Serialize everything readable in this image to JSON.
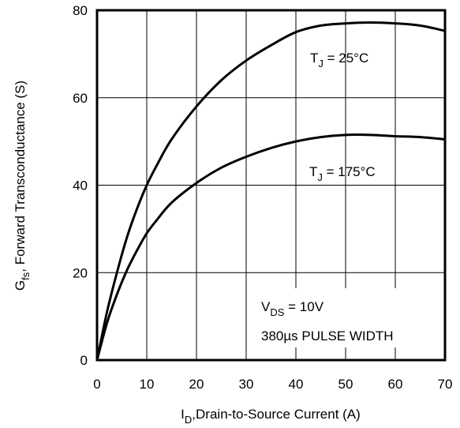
{
  "chart_data": {
    "type": "line",
    "x": [
      0,
      2,
      4,
      6,
      8,
      10,
      12,
      15,
      20,
      25,
      30,
      35,
      40,
      45,
      50,
      55,
      60,
      65,
      70
    ],
    "series": [
      {
        "name_main": "T",
        "name_sub": "J",
        "name_rest": " = 25°C",
        "values": [
          0,
          11,
          20,
          28,
          34.5,
          40,
          44.5,
          50.5,
          58,
          64,
          68.5,
          72,
          75,
          76.5,
          77,
          77.2,
          77,
          76.5,
          75.3
        ]
      },
      {
        "name_main": "T",
        "name_sub": "J",
        "name_rest": " = 175°C",
        "values": [
          0,
          8.5,
          15,
          20.5,
          25,
          29,
          32,
          36,
          40.5,
          44,
          46.5,
          48.5,
          50,
          51,
          51.5,
          51.5,
          51.2,
          51,
          50.5
        ]
      }
    ],
    "xlim": [
      0,
      70
    ],
    "ylim": [
      0,
      80
    ],
    "x_ticks": [
      0,
      10,
      20,
      30,
      40,
      50,
      60,
      70
    ],
    "y_ticks": [
      0,
      20,
      40,
      60,
      80
    ],
    "xlabel": {
      "main": "I",
      "sub": "D",
      "rest": ",Drain-to-Source Current (A)"
    },
    "ylabel": {
      "main": "G",
      "sub": "fs",
      "rest": ", Forward Transconductance (S)"
    },
    "annotation": {
      "line1_main": "V",
      "line1_sub": "DS",
      "line1_rest": " = 10V",
      "line2": "380µs PULSE WIDTH"
    },
    "grid": true,
    "line_color": "#000000"
  }
}
